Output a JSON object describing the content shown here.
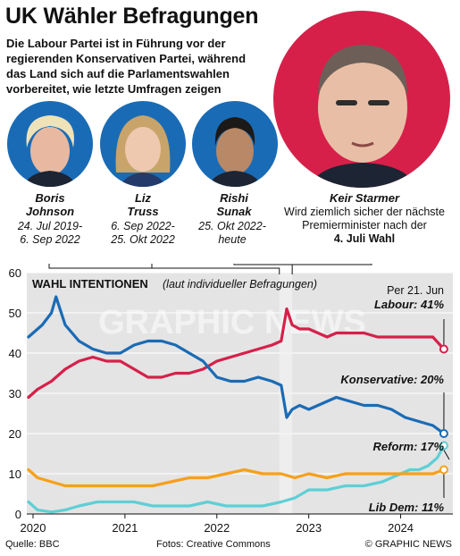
{
  "header": {
    "title": "UK Wähler Befragungen",
    "subtitle": "Die Labour Partei ist in Führung vor der regierenden Konservativen Partei, während das Land sich auf die Parlamentswahlen vorbereitet, wie letzte Umfragen zeigen"
  },
  "people": [
    {
      "first": "Boris",
      "last": "Johnson",
      "term_line1": "24. Jul  2019-",
      "term_line2": "6. Sep 2022"
    },
    {
      "first": "Liz",
      "last": "Truss",
      "term_line1": "6. Sep 2022-",
      "term_line2": "25. Okt 2022"
    },
    {
      "first": "Rishi",
      "last": "Sunak",
      "term_line1": "25. Okt 2022-",
      "term_line2": "heute"
    }
  ],
  "starmer": {
    "name": "Keir Starmer",
    "line1": "Wird ziemlich sicher der nächste",
    "line2": "Premierminister nach der",
    "line3": "4. Juli Wahl"
  },
  "footer": {
    "source": "Quelle: BBC",
    "credits": "Fotos: Creative Commons",
    "copyright": "© GRAPHIC NEWS"
  },
  "watermark": "GRAPHIC NEWS",
  "colors": {
    "labour": "#d6204a",
    "konservative": "#1a6bb5",
    "reform": "#5fcfd6",
    "libdem": "#f6a01a",
    "plot_bg": "#e4e4e4",
    "circle_bg": "#1a6bb5",
    "starmer_bg": "#d6204a"
  },
  "chart_data": {
    "type": "line",
    "title": "WAHL INTENTIONEN",
    "subtitle": "(laut individueller Befragungen)",
    "date_note": "Per 21. Jun",
    "ylim": [
      0,
      60
    ],
    "yticks": [
      0,
      10,
      20,
      30,
      40,
      50,
      60
    ],
    "xticks": [
      "2020",
      "2021",
      "2022",
      "2023",
      "2024"
    ],
    "x_unit": "year",
    "series": [
      {
        "name": "Labour",
        "label": "Labour: 41%",
        "color": "#d6204a",
        "x": [
          2019.95,
          2020.05,
          2020.2,
          2020.35,
          2020.5,
          2020.65,
          2020.8,
          2020.95,
          2021.1,
          2021.25,
          2021.4,
          2021.55,
          2021.7,
          2021.85,
          2022.0,
          2022.15,
          2022.3,
          2022.45,
          2022.6,
          2022.7,
          2022.76,
          2022.82,
          2022.9,
          2023.0,
          2023.1,
          2023.2,
          2023.3,
          2023.45,
          2023.6,
          2023.75,
          2023.9,
          2024.05,
          2024.2,
          2024.35,
          2024.47
        ],
        "values": [
          29,
          31,
          33,
          36,
          38,
          39,
          38,
          38,
          36,
          34,
          34,
          35,
          35,
          36,
          38,
          39,
          40,
          41,
          42,
          43,
          51,
          47,
          46,
          46,
          45,
          44,
          45,
          45,
          45,
          44,
          44,
          44,
          44,
          44,
          41
        ]
      },
      {
        "name": "Konservative",
        "label": "Konservative: 20%",
        "color": "#1a6bb5",
        "x": [
          2019.95,
          2020.0,
          2020.1,
          2020.2,
          2020.25,
          2020.35,
          2020.5,
          2020.65,
          2020.8,
          2020.95,
          2021.1,
          2021.25,
          2021.4,
          2021.55,
          2021.7,
          2021.85,
          2022.0,
          2022.15,
          2022.3,
          2022.45,
          2022.6,
          2022.7,
          2022.76,
          2022.82,
          2022.9,
          2023.0,
          2023.1,
          2023.2,
          2023.3,
          2023.45,
          2023.6,
          2023.75,
          2023.9,
          2024.05,
          2024.2,
          2024.35,
          2024.47
        ],
        "values": [
          44,
          45,
          47,
          50,
          54,
          47,
          43,
          41,
          40,
          40,
          42,
          43,
          43,
          42,
          40,
          38,
          34,
          33,
          33,
          34,
          33,
          32,
          24,
          26,
          27,
          26,
          27,
          28,
          29,
          28,
          27,
          27,
          26,
          24,
          23,
          22,
          20
        ]
      },
      {
        "name": "Reform",
        "label": "Reform: 17%",
        "color": "#5fcfd6",
        "x": [
          2019.95,
          2020.05,
          2020.2,
          2020.35,
          2020.5,
          2020.7,
          2020.9,
          2021.1,
          2021.3,
          2021.5,
          2021.7,
          2021.9,
          2022.1,
          2022.3,
          2022.5,
          2022.7,
          2022.85,
          2023.0,
          2023.2,
          2023.4,
          2023.6,
          2023.8,
          2024.0,
          2024.1,
          2024.2,
          2024.3,
          2024.4,
          2024.47
        ],
        "values": [
          3,
          1,
          0.5,
          1,
          2,
          3,
          3,
          3,
          2,
          2,
          2,
          3,
          2,
          2,
          2,
          3,
          4,
          6,
          6,
          7,
          7,
          8,
          10,
          11,
          11,
          12,
          14,
          17
        ]
      },
      {
        "name": "Lib Dem",
        "label": "Lib Dem: 11%",
        "color": "#f6a01a",
        "x": [
          2019.95,
          2020.05,
          2020.2,
          2020.35,
          2020.5,
          2020.7,
          2020.9,
          2021.1,
          2021.3,
          2021.5,
          2021.7,
          2021.9,
          2022.1,
          2022.3,
          2022.5,
          2022.7,
          2022.85,
          2023.0,
          2023.2,
          2023.4,
          2023.6,
          2023.8,
          2024.0,
          2024.2,
          2024.35,
          2024.47
        ],
        "values": [
          11,
          9,
          8,
          7,
          7,
          7,
          7,
          7,
          7,
          8,
          9,
          9,
          10,
          11,
          10,
          10,
          9,
          10,
          9,
          10,
          10,
          10,
          10,
          10,
          10,
          11
        ]
      }
    ]
  }
}
